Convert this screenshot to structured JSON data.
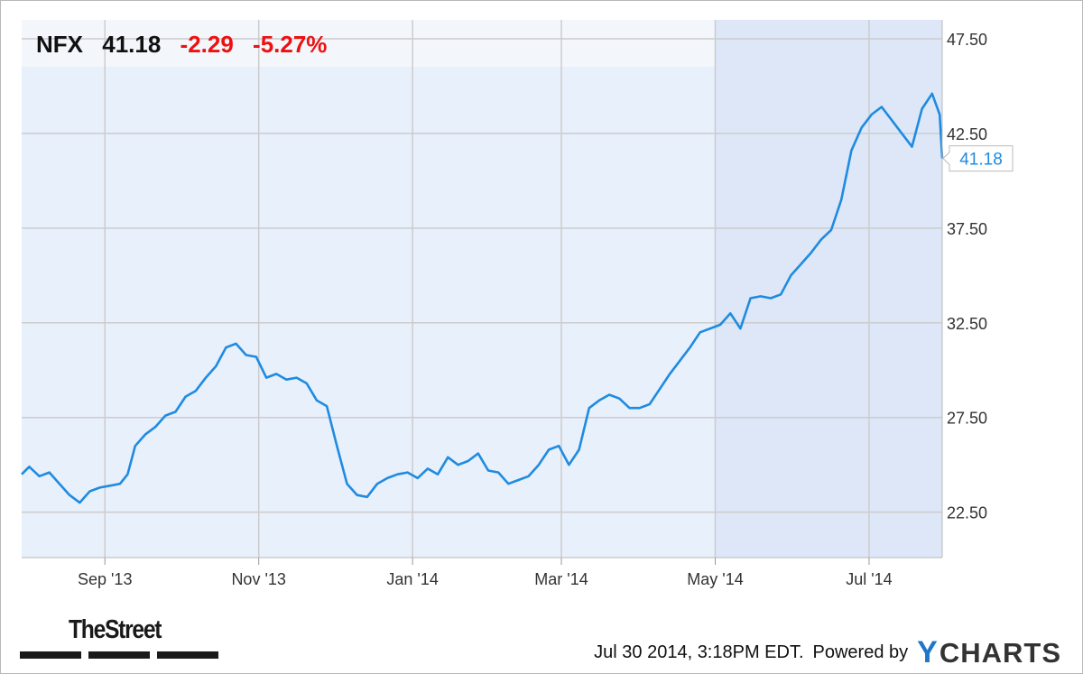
{
  "header": {
    "symbol": "NFX",
    "price": "41.18",
    "change": "-2.29",
    "change_pct": "-5.27%"
  },
  "last_price_label": "41.18",
  "footer": {
    "timestamp": "Jul 30 2014, 3:18PM EDT.",
    "powered_by": "Powered by",
    "brand_y": "Y",
    "brand_rest": "CHARTS",
    "left_brand": "TheStreet"
  },
  "colors": {
    "line": "#1f8be0",
    "plot_bg": "#e8f0fc",
    "highlight_bg": "#dde7f8",
    "grid": "#cccccc",
    "negative": "#ee1111"
  },
  "chart_data": {
    "type": "line",
    "title": "",
    "xlabel": "",
    "ylabel": "",
    "ylim": [
      20.1,
      48.5
    ],
    "y_ticks": [
      "47.50",
      "42.50",
      "37.50",
      "32.50",
      "27.50",
      "22.50"
    ],
    "y_tick_values": [
      47.5,
      42.5,
      37.5,
      32.5,
      27.5,
      22.5
    ],
    "x_ticks": [
      "Sep '13",
      "Nov '13",
      "Jan '14",
      "Mar '14",
      "May '14",
      "Jul '14"
    ],
    "x_tick_dates": [
      "2013-09-01",
      "2013-11-01",
      "2014-01-01",
      "2014-03-01",
      "2014-05-01",
      "2014-07-01"
    ],
    "x_range": [
      "2013-07-30",
      "2014-07-30"
    ],
    "grid": true,
    "legend": "none",
    "series": [
      {
        "x": [
          "2013-07-30",
          "2013-08-02",
          "2013-08-06",
          "2013-08-10",
          "2013-08-14",
          "2013-08-18",
          "2013-08-22",
          "2013-08-26",
          "2013-08-30",
          "2013-09-03",
          "2013-09-07",
          "2013-09-10",
          "2013-09-13",
          "2013-09-17",
          "2013-09-21",
          "2013-09-25",
          "2013-09-29",
          "2013-10-03",
          "2013-10-07",
          "2013-10-11",
          "2013-10-15",
          "2013-10-19",
          "2013-10-23",
          "2013-10-27",
          "2013-10-31",
          "2013-11-04",
          "2013-11-08",
          "2013-11-12",
          "2013-11-16",
          "2013-11-20",
          "2013-11-24",
          "2013-11-28",
          "2013-12-02",
          "2013-12-06",
          "2013-12-10",
          "2013-12-14",
          "2013-12-18",
          "2013-12-22",
          "2013-12-26",
          "2013-12-30",
          "2014-01-03",
          "2014-01-07",
          "2014-01-11",
          "2014-01-15",
          "2014-01-19",
          "2014-01-23",
          "2014-01-27",
          "2014-01-31",
          "2014-02-04",
          "2014-02-08",
          "2014-02-12",
          "2014-02-16",
          "2014-02-20",
          "2014-02-24",
          "2014-02-28",
          "2014-03-04",
          "2014-03-08",
          "2014-03-12",
          "2014-03-16",
          "2014-03-20",
          "2014-03-24",
          "2014-03-28",
          "2014-04-01",
          "2014-04-05",
          "2014-04-09",
          "2014-04-13",
          "2014-04-17",
          "2014-04-21",
          "2014-04-25",
          "2014-04-29",
          "2014-05-03",
          "2014-05-07",
          "2014-05-11",
          "2014-05-15",
          "2014-05-19",
          "2014-05-23",
          "2014-05-27",
          "2014-05-31",
          "2014-06-04",
          "2014-06-08",
          "2014-06-12",
          "2014-06-16",
          "2014-06-20",
          "2014-06-24",
          "2014-06-28",
          "2014-07-02",
          "2014-07-06",
          "2014-07-10",
          "2014-07-14",
          "2014-07-18",
          "2014-07-22",
          "2014-07-26",
          "2014-07-29",
          "2014-07-30"
        ],
        "values": [
          24.5,
          24.9,
          24.4,
          24.6,
          24.0,
          23.4,
          23.0,
          23.6,
          23.8,
          23.9,
          24.0,
          24.5,
          26.0,
          26.6,
          27.0,
          27.6,
          27.8,
          28.6,
          28.9,
          29.6,
          30.2,
          31.2,
          31.4,
          30.8,
          30.7,
          29.6,
          29.8,
          29.5,
          29.6,
          29.3,
          28.4,
          28.1,
          26.0,
          24.0,
          23.4,
          23.3,
          24.0,
          24.3,
          24.5,
          24.6,
          24.3,
          24.8,
          24.5,
          25.4,
          25.0,
          25.2,
          25.6,
          24.7,
          24.6,
          24.0,
          24.2,
          24.4,
          25.0,
          25.8,
          26.0,
          25.0,
          25.8,
          28.0,
          28.4,
          28.7,
          28.5,
          28.0,
          28.0,
          28.2,
          29.0,
          29.8,
          30.5,
          31.2,
          32.0,
          32.2,
          32.4,
          33.0,
          32.2,
          33.8,
          33.9,
          33.8,
          34.0,
          35.0,
          35.6,
          36.2,
          36.9,
          37.4,
          39.0,
          41.6,
          42.8,
          43.5,
          43.9,
          43.2,
          42.5,
          41.8,
          43.8,
          44.6,
          43.5,
          41.18
        ]
      }
    ]
  }
}
